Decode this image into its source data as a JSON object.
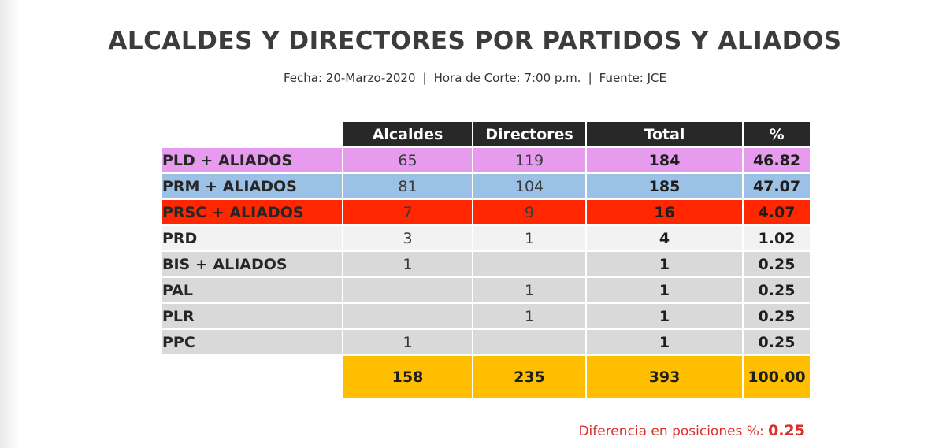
{
  "title": "ALCALDES Y DIRECTORES POR PARTIDOS Y ALIADOS",
  "subtitle": {
    "fecha": "Fecha: 20-Marzo-2020",
    "sep": "|",
    "hora": "Hora de Corte: 7:00 p.m.",
    "fuente": "Fuente: JCE"
  },
  "headers": [
    "Alcaldes",
    "Directores",
    "Total",
    "%"
  ],
  "rows": [
    {
      "party": "PLD + ALIADOS",
      "alcaldes": "65",
      "directores": "119",
      "total": "184",
      "pct": "46.82",
      "color": "#e79bef"
    },
    {
      "party": "PRM + ALIADOS",
      "alcaldes": "81",
      "directores": "104",
      "total": "185",
      "pct": "47.07",
      "color": "#9bc1e6"
    },
    {
      "party": "PRSC + ALIADOS",
      "alcaldes": "7",
      "directores": "9",
      "total": "16",
      "pct": "4.07",
      "color": "#ff2600"
    },
    {
      "party": "PRD",
      "alcaldes": "3",
      "directores": "1",
      "total": "4",
      "pct": "1.02",
      "color": "#f2f2f2"
    },
    {
      "party": "BIS + ALIADOS",
      "alcaldes": "1",
      "directores": "",
      "total": "1",
      "pct": "0.25",
      "color": "#d9d9d9"
    },
    {
      "party": "PAL",
      "alcaldes": "",
      "directores": "1",
      "total": "1",
      "pct": "0.25",
      "color": "#d9d9d9"
    },
    {
      "party": "PLR",
      "alcaldes": "",
      "directores": "1",
      "total": "1",
      "pct": "0.25",
      "color": "#d9d9d9"
    },
    {
      "party": "PPC",
      "alcaldes": "1",
      "directores": "",
      "total": "1",
      "pct": "0.25",
      "color": "#d9d9d9"
    }
  ],
  "totals": {
    "alcaldes": "158",
    "directores": "235",
    "total": "393",
    "pct": "100.00"
  },
  "footer": {
    "label": "Diferencia en posiciones  %:",
    "value": "0.25"
  }
}
